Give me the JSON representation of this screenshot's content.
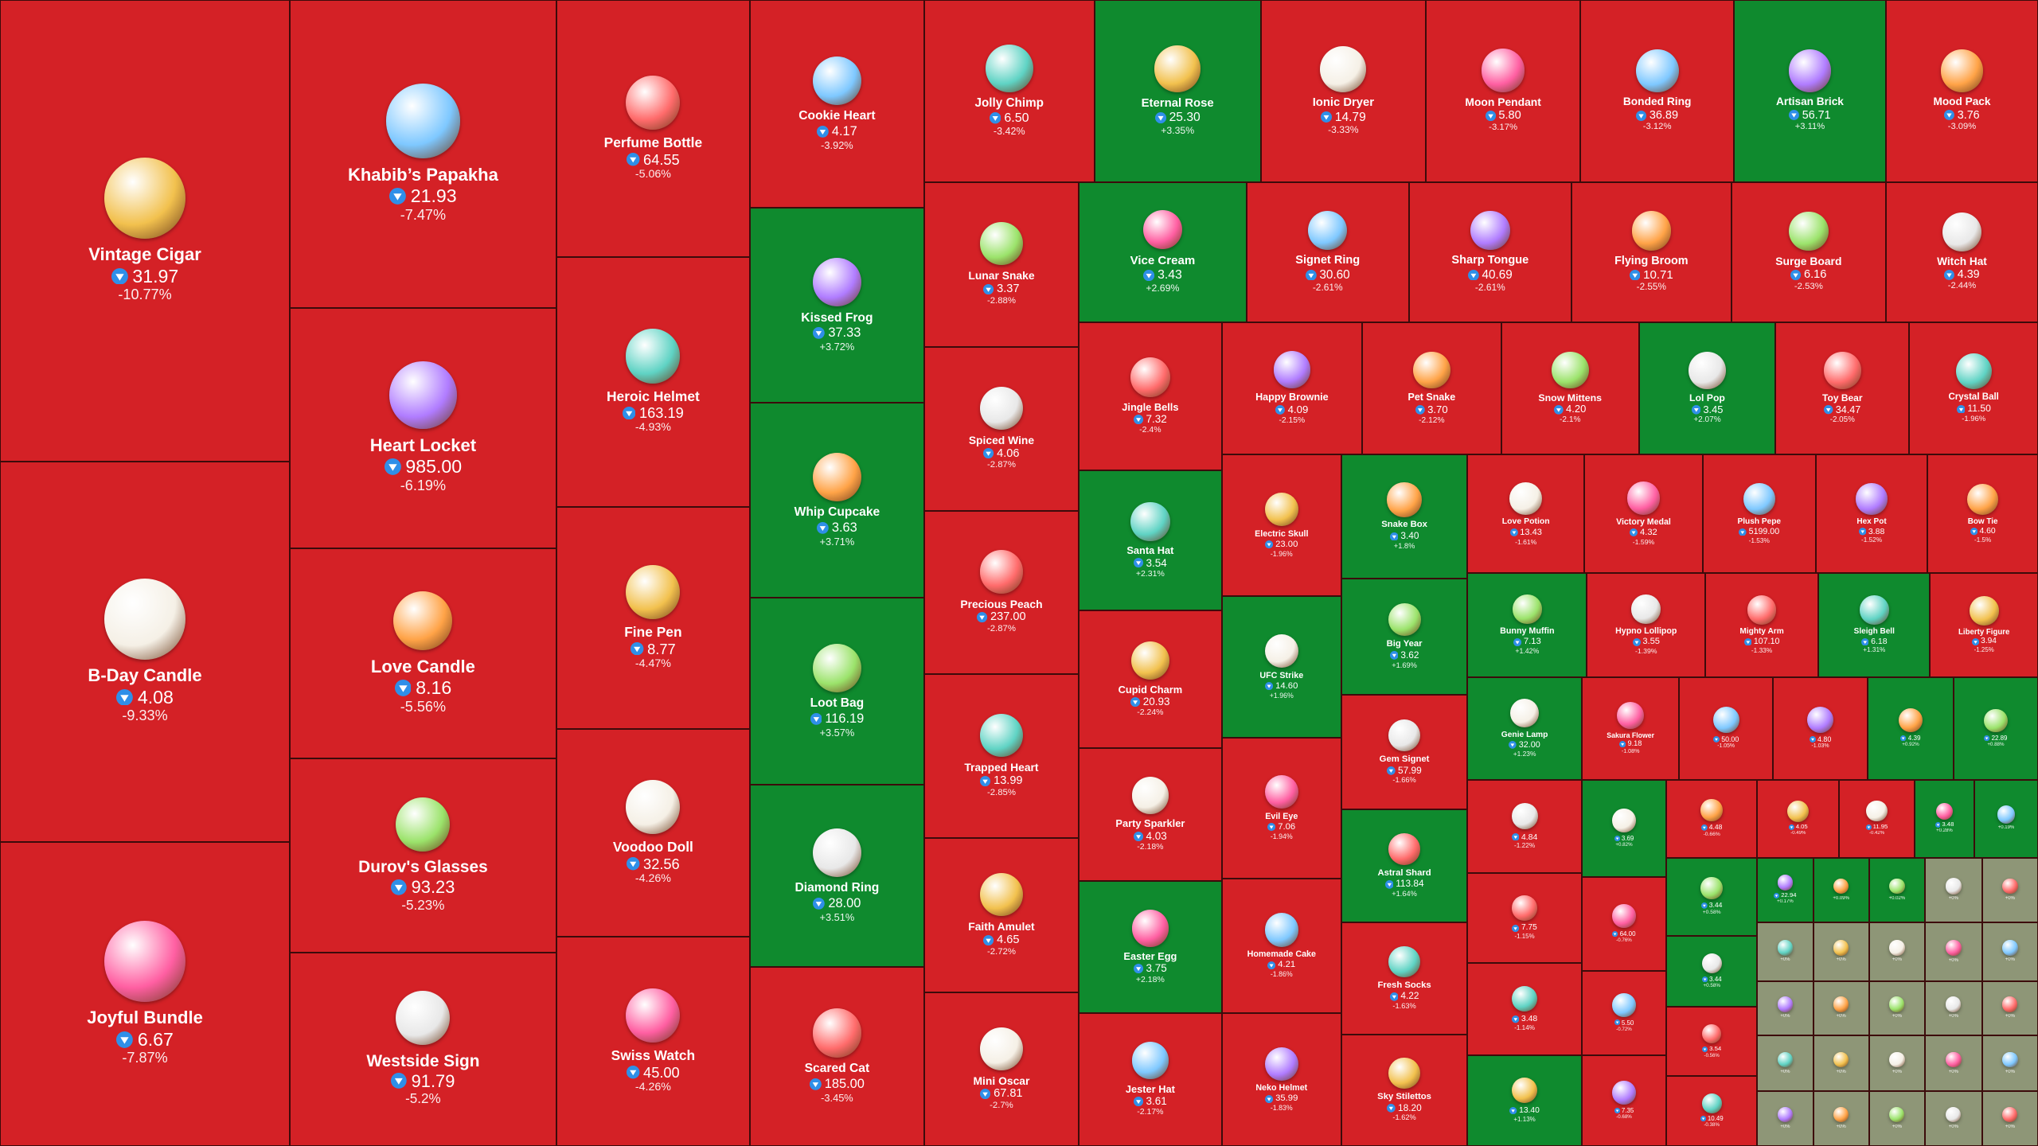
{
  "watermark": "@gift_charts",
  "items": [
    {
      "name": "Vintage Cigar",
      "price": "31.97",
      "change": "-10.77%"
    },
    {
      "name": "B-Day Candle",
      "price": "4.08",
      "change": "-9.33%"
    },
    {
      "name": "Joyful Bundle",
      "price": "6.67",
      "change": "-7.87%"
    },
    {
      "name": "Khabib’s Papakha",
      "price": "21.93",
      "change": "-7.47%"
    },
    {
      "name": "Heart Locket",
      "price": "985.00",
      "change": "-6.19%"
    },
    {
      "name": "Love Candle",
      "price": "8.16",
      "change": "-5.56%"
    },
    {
      "name": "Durov's Glasses",
      "price": "93.23",
      "change": "-5.23%"
    },
    {
      "name": "Westside Sign",
      "price": "91.79",
      "change": "-5.2%"
    },
    {
      "name": "Perfume Bottle",
      "price": "64.55",
      "change": "-5.06%"
    },
    {
      "name": "Heroic Helmet",
      "price": "163.19",
      "change": "-4.93%"
    },
    {
      "name": "Fine Pen",
      "price": "8.77",
      "change": "-4.47%"
    },
    {
      "name": "Voodoo Doll",
      "price": "32.56",
      "change": "-4.26%"
    },
    {
      "name": "Swiss Watch",
      "price": "45.00",
      "change": "-4.26%"
    },
    {
      "name": "Cookie Heart",
      "price": "4.17",
      "change": "-3.92%"
    },
    {
      "name": "Kissed Frog",
      "price": "37.33",
      "change": "+3.72%"
    },
    {
      "name": "Whip Cupcake",
      "price": "3.63",
      "change": "+3.71%"
    },
    {
      "name": "Loot Bag",
      "price": "116.19",
      "change": "+3.57%"
    },
    {
      "name": "Diamond Ring",
      "price": "28.00",
      "change": "+3.51%"
    },
    {
      "name": "Scared Cat",
      "price": "185.00",
      "change": "-3.45%"
    },
    {
      "name": "Jolly Chimp",
      "price": "6.50",
      "change": "-3.42%"
    },
    {
      "name": "Eternal Rose",
      "price": "25.30",
      "change": "+3.35%"
    },
    {
      "name": "Ionic Dryer",
      "price": "14.79",
      "change": "-3.33%"
    },
    {
      "name": "Moon Pendant",
      "price": "5.80",
      "change": "-3.17%"
    },
    {
      "name": "Bonded Ring",
      "price": "36.89",
      "change": "-3.12%"
    },
    {
      "name": "Artisan Brick",
      "price": "56.71",
      "change": "+3.11%"
    },
    {
      "name": "Mood Pack",
      "price": "3.76",
      "change": "-3.09%"
    },
    {
      "name": "Lunar Snake",
      "price": "3.37",
      "change": "-2.88%"
    },
    {
      "name": "Spiced Wine",
      "price": "4.06",
      "change": "-2.87%"
    },
    {
      "name": "Precious Peach",
      "price": "237.00",
      "change": "-2.87%"
    },
    {
      "name": "Trapped Heart",
      "price": "13.99",
      "change": "-2.85%"
    },
    {
      "name": "Faith Amulet",
      "price": "4.65",
      "change": "-2.72%"
    },
    {
      "name": "Mini Oscar",
      "price": "67.81",
      "change": "-2.7%"
    },
    {
      "name": "Vice Cream",
      "price": "3.43",
      "change": "+2.69%"
    },
    {
      "name": "Signet Ring",
      "price": "30.60",
      "change": "-2.61%"
    },
    {
      "name": "Sharp Tongue",
      "price": "40.69",
      "change": "-2.61%"
    },
    {
      "name": "Flying Broom",
      "price": "10.71",
      "change": "-2.55%"
    },
    {
      "name": "Surge Board",
      "price": "6.16",
      "change": "-2.53%"
    },
    {
      "name": "Witch Hat",
      "price": "4.39",
      "change": "-2.44%"
    },
    {
      "name": "Jingle Bells",
      "price": "7.32",
      "change": "-2.4%"
    },
    {
      "name": "Santa Hat",
      "price": "3.54",
      "change": "+2.31%"
    },
    {
      "name": "Cupid Charm",
      "price": "20.93",
      "change": "-2.24%"
    },
    {
      "name": "Party Sparkler",
      "price": "4.03",
      "change": "-2.18%"
    },
    {
      "name": "Easter Egg",
      "price": "3.75",
      "change": "+2.18%"
    },
    {
      "name": "Jester Hat",
      "price": "3.61",
      "change": "-2.17%"
    },
    {
      "name": "Happy Brownie",
      "price": "4.09",
      "change": "-2.15%"
    },
    {
      "name": "Pet Snake",
      "price": "3.70",
      "change": "-2.12%"
    },
    {
      "name": "Snow Mittens",
      "price": "4.20",
      "change": "-2.1%"
    },
    {
      "name": "Lol Pop",
      "price": "3.45",
      "change": "+2.07%"
    },
    {
      "name": "Toy Bear",
      "price": "34.47",
      "change": "-2.05%"
    },
    {
      "name": "Crystal Ball",
      "price": "11.50",
      "change": "-1.96%"
    },
    {
      "name": "Electric Skull",
      "price": "23.00",
      "change": "-1.96%"
    },
    {
      "name": "UFC Strike",
      "price": "14.60",
      "change": "+1.96%"
    },
    {
      "name": "Evil Eye",
      "price": "7.06",
      "change": "-1.94%"
    },
    {
      "name": "Homemade Cake",
      "price": "4.21",
      "change": "-1.86%"
    },
    {
      "name": "Neko Helmet",
      "price": "35.99",
      "change": "-1.83%"
    },
    {
      "name": "Snake Box",
      "price": "3.40",
      "change": "+1.8%"
    },
    {
      "name": "Big Year",
      "price": "3.62",
      "change": "+1.69%"
    },
    {
      "name": "Gem Signet",
      "price": "57.99",
      "change": "-1.66%"
    },
    {
      "name": "Astral Shard",
      "price": "113.84",
      "change": "+1.64%"
    },
    {
      "name": "Fresh Socks",
      "price": "4.22",
      "change": "-1.63%"
    },
    {
      "name": "Sky Stilettos",
      "price": "18.20",
      "change": "-1.62%"
    },
    {
      "name": "Love Potion",
      "price": "13.43",
      "change": "-1.61%"
    },
    {
      "name": "Victory Medal",
      "price": "4.32",
      "change": "-1.59%"
    },
    {
      "name": "Plush Pepe",
      "price": "5199.00",
      "change": "-1.53%"
    },
    {
      "name": "Hex Pot",
      "price": "3.88",
      "change": "-1.52%"
    },
    {
      "name": "Bow Tie",
      "price": "4.60",
      "change": "-1.5%"
    },
    {
      "name": "Bunny Muffin",
      "price": "7.13",
      "change": "+1.42%"
    },
    {
      "name": "Hypno Lollipop",
      "price": "3.55",
      "change": "-1.39%"
    },
    {
      "name": "Mighty Arm",
      "price": "107.10",
      "change": "-1.33%"
    },
    {
      "name": "Sleigh Bell",
      "price": "6.18",
      "change": "+1.31%"
    },
    {
      "name": "Liberty Figure",
      "price": "3.94",
      "change": "-1.25%"
    },
    {
      "name": "Genie Lamp",
      "price": "32.00",
      "change": "+1.23%"
    },
    {
      "name": "Sakura Flower",
      "price": "9.18",
      "change": "-1.08%"
    },
    {
      "price": "50.00",
      "change": "-1.05%"
    },
    {
      "price": "4.80",
      "change": "-1.03%"
    },
    {
      "price": "4.39",
      "change": "+0.92%"
    },
    {
      "price": "22.89",
      "change": "+0.88%"
    },
    {
      "price": "4.84",
      "change": "-1.22%"
    },
    {
      "price": "7.75",
      "change": "-1.15%"
    },
    {
      "price": "3.48",
      "change": "-1.14%"
    },
    {
      "price": "13.40",
      "change": "+1.13%"
    },
    {
      "price": "3.69",
      "change": "+0.82%"
    },
    {
      "price": "64.00",
      "change": "-0.76%"
    },
    {
      "price": "5.50",
      "change": "-0.72%"
    },
    {
      "price": "7.35",
      "change": "-0.68%"
    },
    {
      "price": "4.48",
      "change": "-0.66%"
    },
    {
      "price": "3.44",
      "change": "+0.58%"
    },
    {
      "price": "3.44",
      "change": "+0.58%"
    },
    {
      "price": "3.54",
      "change": "-0.56%"
    },
    {
      "price": "10.49",
      "change": "-0.38%"
    },
    {
      "price": "4.05",
      "change": "-0.49%"
    },
    {
      "price": "11.95",
      "change": "-0.42%"
    },
    {
      "price": "3.48",
      "change": "+0.28%"
    },
    {
      "change": "+0.19%"
    },
    {
      "price": "22.94",
      "change": "+0.17%"
    },
    {
      "change": "+0.09%"
    },
    {
      "change": "+0.02%"
    },
    {
      "change": "+0%"
    },
    {
      "change": "+0%"
    },
    {
      "change": "+0%"
    },
    {
      "change": "+0%"
    },
    {
      "change": "+0%"
    },
    {
      "change": "+0%"
    },
    {
      "change": "+0%"
    },
    {
      "change": "+0%"
    },
    {
      "change": "+0%"
    },
    {
      "change": "+0%"
    },
    {
      "change": "+0%"
    },
    {
      "change": "+0%"
    },
    {
      "change": "+0%"
    },
    {
      "change": "+0%"
    },
    {
      "change": "+0%"
    },
    {
      "change": "+0%"
    },
    {
      "change": "+0%"
    },
    {
      "change": "+0%"
    },
    {
      "change": "+0%"
    },
    {
      "change": "+0%"
    },
    {
      "change": "+0%"
    },
    {
      "change": "+0%"
    }
  ]
}
